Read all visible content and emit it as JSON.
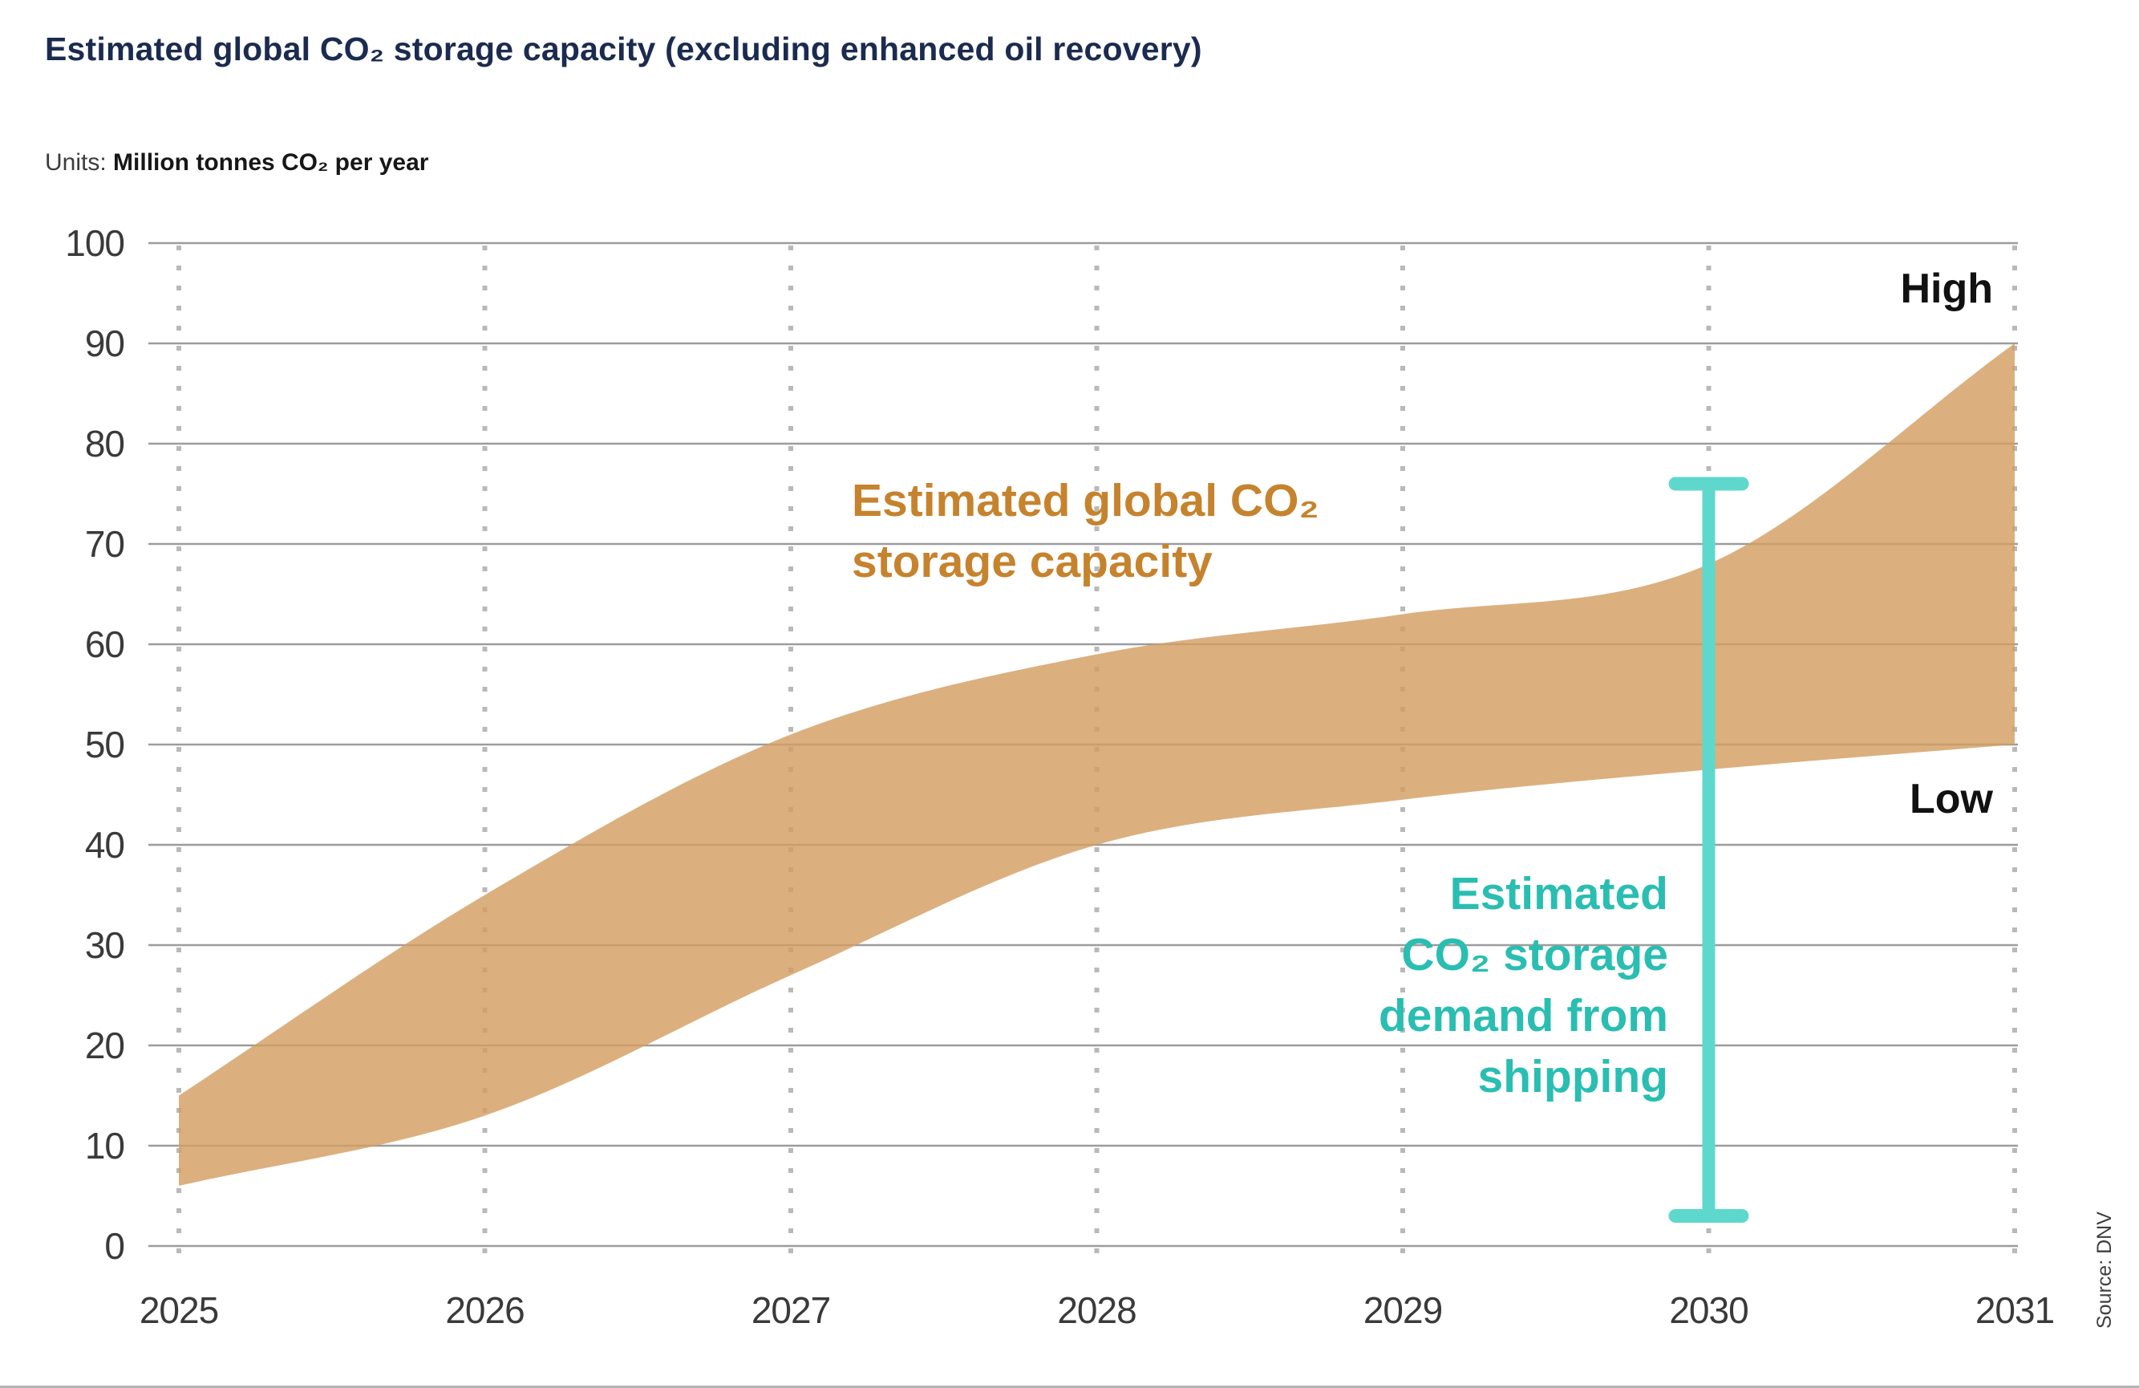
{
  "header": {
    "title": "Estimated global CO₂ storage capacity (excluding enhanced oil recovery)",
    "units_label": "Units:",
    "units_value": "Million tonnes CO₂ per year"
  },
  "footer": {
    "source": "Source: DNV"
  },
  "chart_data": {
    "type": "area",
    "title": "Estimated global CO₂ storage capacity (excluding enhanced oil recovery)",
    "ylabel": "Million tonnes CO₂ per year",
    "x": [
      2025,
      2026,
      2027,
      2028,
      2029,
      2030,
      2031
    ],
    "series": [
      {
        "name": "High",
        "values": [
          15,
          35,
          51,
          59,
          63,
          68,
          90
        ]
      },
      {
        "name": "Low",
        "values": [
          6,
          13,
          27,
          40,
          44.5,
          47.5,
          50
        ]
      }
    ],
    "band_label": "Estimated global CO₂\nstorage capacity",
    "high_label": "High",
    "low_label": "Low",
    "ylim": [
      0,
      100
    ],
    "ytick_step": 10,
    "yticks": [
      0,
      10,
      20,
      30,
      40,
      50,
      60,
      70,
      80,
      90,
      100
    ],
    "grid": {
      "horizontal": "solid",
      "vertical": "dotted"
    },
    "error_bar": {
      "x": 2030,
      "low": 3,
      "high": 76,
      "label": "Estimated\nCO₂ storage\ndemand from\nshipping"
    },
    "colors": {
      "band": "#DBB07E",
      "band_label": "#C6832E",
      "error_bar": "#5ED8CD",
      "error_bar_label": "#29BEB1",
      "title": "#1B2B50",
      "ticks": "#3A3A3A",
      "grid": "#9C9C9C",
      "grid_dots": "#B9B9B9",
      "high_low": "#111111"
    }
  }
}
